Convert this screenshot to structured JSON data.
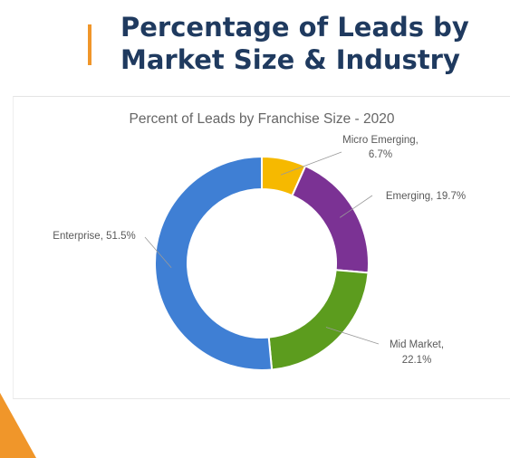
{
  "slide": {
    "title_line1": "Percentage of Leads by",
    "title_line2": "Market Size & Industry",
    "accent_color": "#f0962a",
    "title_color": "#1f3a5f"
  },
  "chart_data": {
    "type": "pie",
    "variant": "donut",
    "title": "Percent of Leads by Franchise Size - 2020",
    "series": [
      {
        "name": "",
        "slices": [
          {
            "label": "Micro Emerging",
            "value": 6.7,
            "value_label": "6.7%",
            "color": "#f6b900"
          },
          {
            "label": "Emerging",
            "value": 19.7,
            "value_label": "19.7%",
            "color": "#7b3294"
          },
          {
            "label": "Mid Market",
            "value": 22.1,
            "value_label": "22.1%",
            "color": "#5c9c1e"
          },
          {
            "label": "Enterprise",
            "value": 51.5,
            "value_label": "51.5%",
            "color": "#3f7fd4"
          }
        ]
      }
    ],
    "legend": "none",
    "data_labels": "outside with leader lines"
  }
}
